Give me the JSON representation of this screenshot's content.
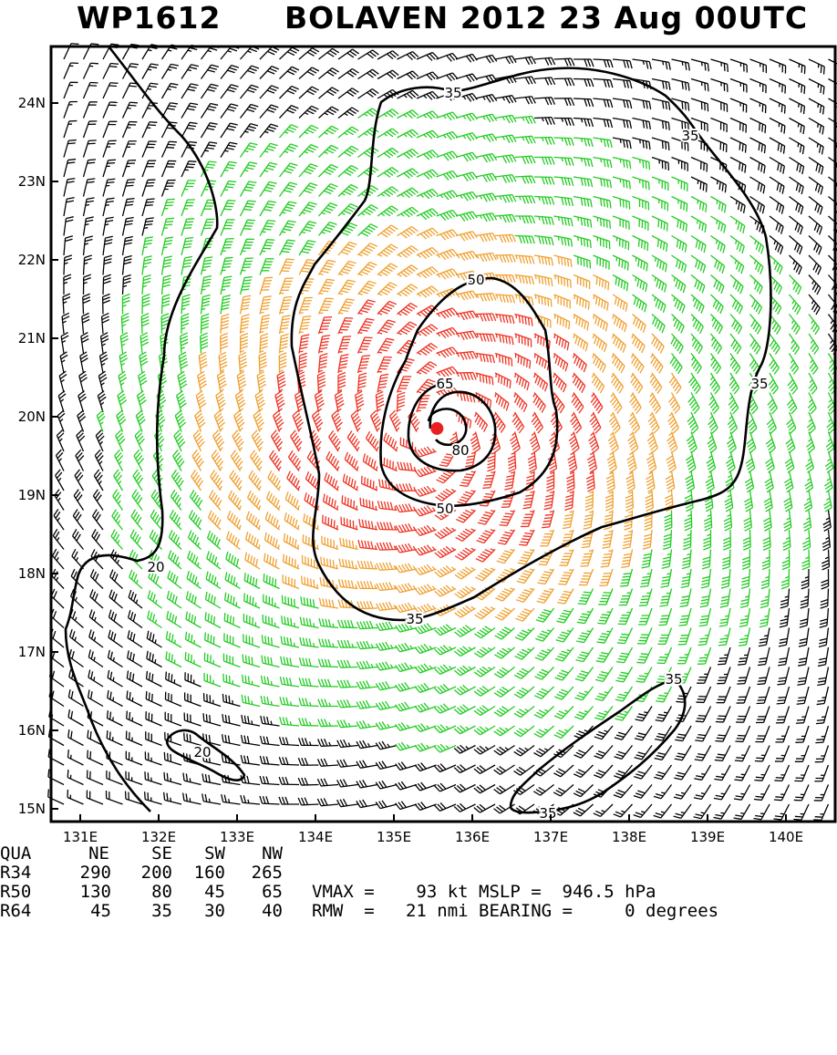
{
  "title": {
    "storm_id": "WP1612",
    "headline": "BOLAVEN 2012 23 Aug 00UTC"
  },
  "colors": {
    "below_34kt": "#000000",
    "gale_34_49kt": "#22cc22",
    "storm_50_63kt": "#f0a030",
    "typhoon_64kt_plus": "#ee3322",
    "contour": "#000000",
    "center": "#e82020"
  },
  "chart_data": {
    "type": "wind-barb-map",
    "x_ticks": [
      "131E",
      "132E",
      "133E",
      "134E",
      "135E",
      "136E",
      "137E",
      "138E",
      "139E",
      "140E"
    ],
    "y_ticks": [
      "24N",
      "23N",
      "22N",
      "21N",
      "20N",
      "19N",
      "18N",
      "17N",
      "16N",
      "15N"
    ],
    "x_range": [
      130.5,
      140.6
    ],
    "y_range": [
      14.85,
      24.85
    ],
    "center": {
      "lon": 135.55,
      "lat": 19.85
    },
    "contour_labels": [
      "20",
      "20",
      "35",
      "35",
      "35",
      "35",
      "35",
      "50",
      "50",
      "65",
      "80"
    ]
  },
  "stats": {
    "header": {
      "label": "QUA",
      "ne": "NE",
      "se": "SE",
      "sw": "SW",
      "nw": "NW"
    },
    "rows": [
      {
        "label": "R34",
        "ne": "290",
        "se": "200",
        "sw": "160",
        "nw": "265"
      },
      {
        "label": "R50",
        "ne": "130",
        "se": "80",
        "sw": "45",
        "nw": "65"
      },
      {
        "label": "R64",
        "ne": "45",
        "se": "35",
        "sw": "30",
        "nw": "40"
      }
    ],
    "vmax_line": "VMAX =    93 kt MSLP =  946.5 hPa",
    "rmw_line": "RMW  =   21 nmi BEARING =     0 degrees"
  }
}
